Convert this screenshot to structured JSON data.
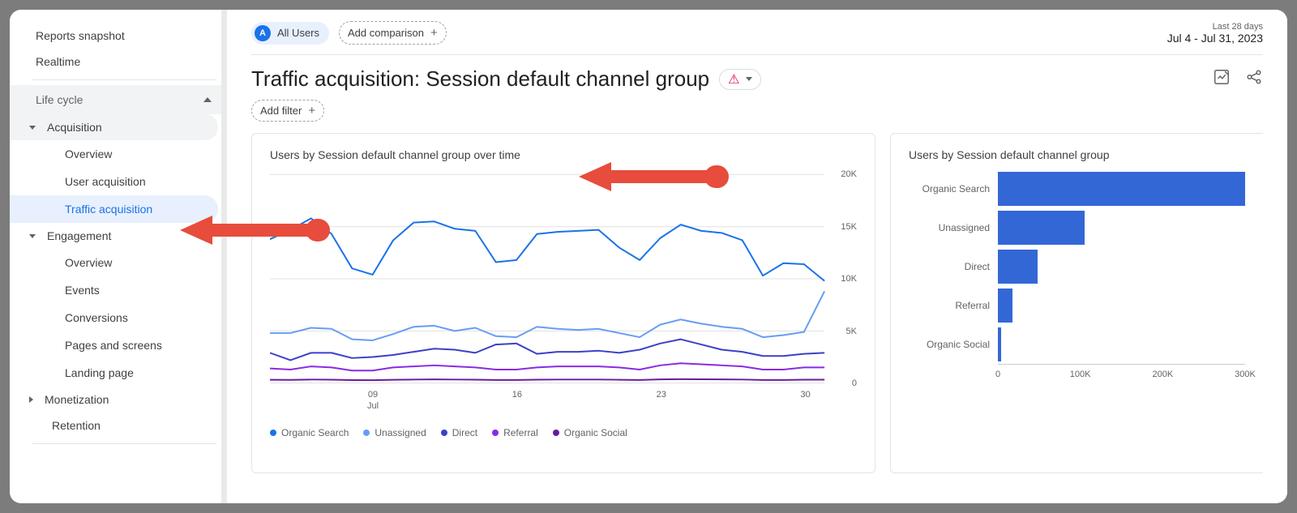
{
  "sidebar": {
    "snapshot": "Reports snapshot",
    "realtime": "Realtime",
    "section_lifecycle": "Life cycle",
    "group_acquisition": "Acquisition",
    "acq_overview": "Overview",
    "acq_user": "User acquisition",
    "acq_traffic": "Traffic acquisition",
    "group_engagement": "Engagement",
    "eng_overview": "Overview",
    "eng_events": "Events",
    "eng_conversions": "Conversions",
    "eng_pages": "Pages and screens",
    "eng_landing": "Landing page",
    "group_monetization": "Monetization",
    "retention": "Retention"
  },
  "header": {
    "all_users": "All Users",
    "add_comparison": "Add comparison",
    "date_label": "Last 28 days",
    "date_range": "Jul 4 - Jul 31, 2023",
    "page_title": "Traffic acquisition: Session default channel group",
    "add_filter": "Add filter"
  },
  "line_card": {
    "title": "Users by Session default channel group over time",
    "y_max": 20000,
    "y_ticks": [
      "20K",
      "15K",
      "10K",
      "5K",
      "0"
    ],
    "x_days": [
      "09",
      "16",
      "23",
      "30"
    ],
    "x_month": "Jul",
    "grid_color": "#e0e0e0",
    "series": [
      {
        "name": "Organic Search",
        "color": "#1a73e8",
        "values": [
          13800,
          14700,
          15800,
          14300,
          11000,
          10400,
          13700,
          15400,
          15500,
          14800,
          14600,
          11600,
          11800,
          14300,
          14500,
          14600,
          14700,
          13000,
          11800,
          13900,
          15200,
          14600,
          14400,
          13700,
          10300,
          11500,
          11400,
          9800
        ]
      },
      {
        "name": "Unassigned",
        "color": "#669df6",
        "values": [
          4800,
          4800,
          5300,
          5200,
          4200,
          4100,
          4700,
          5400,
          5500,
          5000,
          5300,
          4500,
          4400,
          5400,
          5200,
          5100,
          5200,
          4800,
          4400,
          5600,
          6100,
          5700,
          5400,
          5200,
          4400,
          4600,
          4900,
          8800
        ]
      },
      {
        "name": "Direct",
        "color": "#3c40c6",
        "values": [
          2900,
          2200,
          2900,
          2900,
          2400,
          2500,
          2700,
          3000,
          3300,
          3200,
          2900,
          3700,
          3800,
          2800,
          3000,
          3000,
          3100,
          2900,
          3200,
          3800,
          4200,
          3700,
          3200,
          3000,
          2600,
          2600,
          2800,
          2900
        ]
      },
      {
        "name": "Referral",
        "color": "#8a2be2",
        "values": [
          1400,
          1300,
          1600,
          1500,
          1200,
          1200,
          1500,
          1600,
          1700,
          1600,
          1500,
          1300,
          1300,
          1500,
          1600,
          1600,
          1600,
          1500,
          1300,
          1700,
          1900,
          1800,
          1700,
          1600,
          1300,
          1300,
          1500,
          1500
        ]
      },
      {
        "name": "Organic Social",
        "color": "#6a1b9a",
        "values": [
          320,
          310,
          340,
          330,
          290,
          280,
          320,
          340,
          350,
          340,
          330,
          300,
          300,
          330,
          340,
          340,
          340,
          320,
          300,
          350,
          370,
          360,
          350,
          340,
          300,
          300,
          330,
          330
        ]
      }
    ]
  },
  "bar_card": {
    "title": "Users by Session default channel group",
    "x_max": 300000,
    "x_ticks": [
      0,
      100000,
      200000,
      300000
    ],
    "x_tick_labels": [
      "0",
      "100K",
      "200K",
      "300K"
    ],
    "bar_color": "#3367d6",
    "bars": [
      {
        "label": "Organic Search",
        "value": 300000
      },
      {
        "label": "Unassigned",
        "value": 105000
      },
      {
        "label": "Direct",
        "value": 48000
      },
      {
        "label": "Referral",
        "value": 18000
      },
      {
        "label": "Organic Social",
        "value": 4000
      }
    ]
  },
  "annotation_arrow_color": "#e74c3c"
}
